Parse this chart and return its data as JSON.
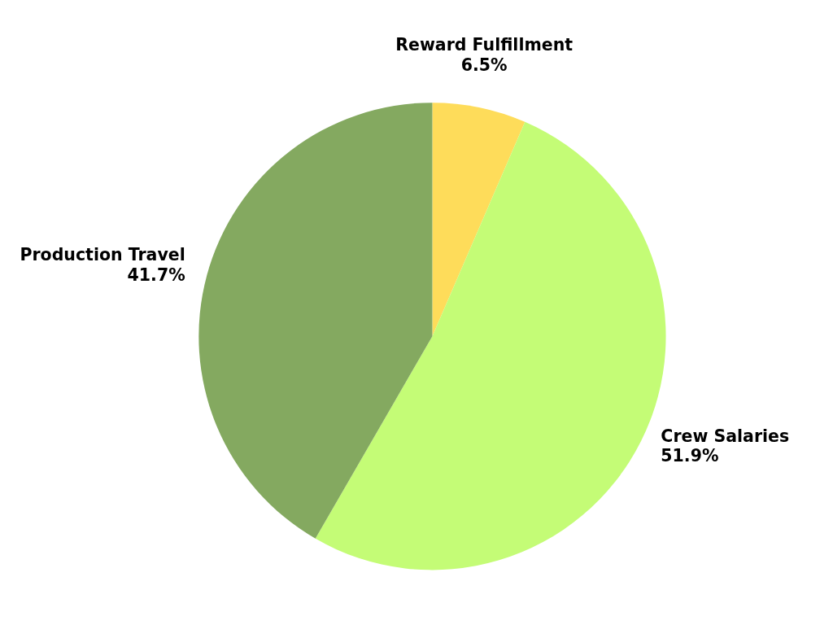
{
  "chart_data": {
    "type": "pie",
    "categories": [
      "Reward Fulfillment",
      "Crew Salaries",
      "Production Travel"
    ],
    "values": [
      6.5,
      51.9,
      41.7
    ],
    "colors": [
      "#fedc5a",
      "#c4fc76",
      "#84a960"
    ],
    "value_labels": [
      "6.5%",
      "51.9%",
      "41.7%"
    ]
  }
}
